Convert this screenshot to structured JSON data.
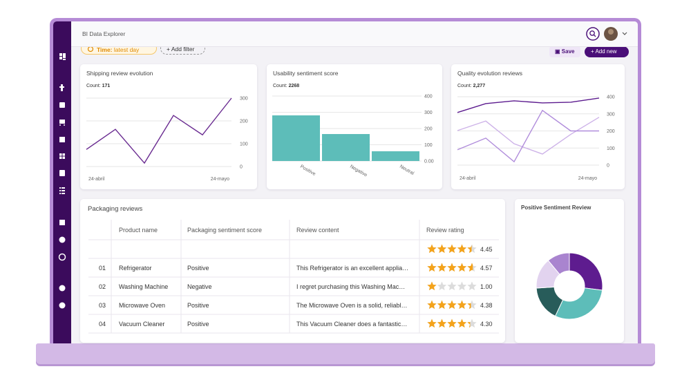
{
  "header": {
    "title": "BI Data Explorer"
  },
  "toolbar": {
    "time_label": "Time:",
    "time_value": "latest day",
    "add_filter": "Add filter",
    "save": "Save",
    "add_new": "Add new"
  },
  "charts": [
    {
      "type": "line",
      "title": "Shipping review evolution",
      "count_label": "Count:",
      "count": 171,
      "categories": [
        "24-abril",
        null,
        null,
        null,
        null,
        "24-mayo"
      ],
      "series": [
        {
          "color": "#6a2c91",
          "values": [
            75,
            163,
            15,
            224,
            139,
            300
          ]
        }
      ],
      "ylim": [
        0,
        300
      ],
      "yticks": [
        0,
        100,
        200,
        300
      ],
      "grid": true
    },
    {
      "type": "bar",
      "title": "Usability sentiment score",
      "count_label": "Count:",
      "count": 2268,
      "categories": [
        "Positive",
        "Negative",
        "Neutral"
      ],
      "values": [
        281,
        166,
        60
      ],
      "color": "#5dbdb9",
      "ylim": [
        0,
        400
      ],
      "yticks": [
        {
          "value": 0,
          "label": "0.00"
        },
        100,
        200,
        300,
        400
      ],
      "grid": true
    },
    {
      "type": "line",
      "title": "Quality evolution reviews",
      "count_label": "Count:",
      "count": {
        "value": 2277,
        "label": "2,277"
      },
      "categories": [
        "24-abril",
        null,
        null,
        null,
        null,
        "24-mayo"
      ],
      "series": [
        {
          "color": "#5b1a8e",
          "values": [
            308,
            360,
            376,
            364,
            368,
            392
          ]
        },
        {
          "color": "#cdb2e8",
          "values": [
            202,
            258,
            125,
            65,
            180,
            280
          ]
        },
        {
          "color": "#b08cdb",
          "values": [
            90,
            158,
            20,
            320,
            200,
            200
          ]
        }
      ],
      "ylim": [
        0,
        400
      ],
      "yticks": [
        0,
        100,
        200,
        300,
        400
      ],
      "grid": true
    },
    {
      "type": "donut",
      "title": "Positive Sentiment Review",
      "values": [
        27,
        30,
        17,
        15,
        11
      ],
      "colors": [
        "#5e1c8f",
        "#5dbdb9",
        "#285c5a",
        "#e2d3ef",
        "#a984cf"
      ]
    }
  ],
  "table": {
    "title": "Packaging reviews",
    "columns": [
      "Product name",
      "Packaging sentiment score",
      "Review content",
      "Review rating"
    ],
    "rows": [
      {
        "rating": 4.45
      },
      {
        "index": "01",
        "product": "Refrigerator",
        "score": "Positive",
        "content": "This Refrigerator is an excellent applia…",
        "rating": 4.57
      },
      {
        "index": "02",
        "product": "Washing Machine",
        "score": "Negative",
        "content": "I regret purchasing this Washing Mac…",
        "rating": 1,
        "rating_label": "1.00"
      },
      {
        "index": "03",
        "product": "Microwave Oven",
        "score": "Positive",
        "content": "The Microwave Oven is a solid, reliabl…",
        "rating": 4.38
      },
      {
        "index": "04",
        "product": "Vacuum Cleaner",
        "score": "Positive",
        "content": "This Vacuum Cleaner does a fantastic…",
        "rating": 4.3,
        "rating_label": "4.30"
      }
    ]
  }
}
